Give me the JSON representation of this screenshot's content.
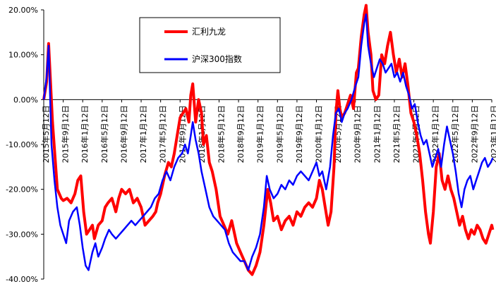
{
  "chart_data": {
    "type": "line",
    "title": "",
    "xlabel": "",
    "ylabel": "",
    "ylim": [
      -40,
      20
    ],
    "yticks": [
      "20.00%",
      "10.00%",
      "0.00%",
      "-10.00%",
      "-20.00%",
      "-30.00%",
      "-40.00%"
    ],
    "ytick_values": [
      20,
      10,
      0,
      -10,
      -20,
      -30,
      -40
    ],
    "xticks": [
      "2015年5月12日",
      "2015年9月12日",
      "2016年1月12日",
      "2016年5月12日",
      "2016年9月12日",
      "2017年1月12日",
      "2017年5月12日",
      "2017年9月12日",
      "2018年1月12日",
      "2018年5月12日",
      "2018年9月12日",
      "2019年1月12日",
      "2019年5月12日",
      "2019年9月12日",
      "2020年1月12日",
      "2020年5月12日",
      "2020年9月12日",
      "2021年1月12日",
      "2021年5月12日",
      "2021年9月12日",
      "2022年1月12日",
      "2022年5月12日",
      "2022年9月12日",
      "2023年1月12日"
    ],
    "grid": false,
    "legend_position": "top-center",
    "series": [
      {
        "name": "汇利九龙",
        "color": "#ff0000",
        "points": [
          [
            0,
            0
          ],
          [
            0.15,
            4
          ],
          [
            0.25,
            12.5
          ],
          [
            0.45,
            -5
          ],
          [
            0.7,
            -20
          ],
          [
            0.9,
            -22
          ],
          [
            1,
            -22.5
          ],
          [
            1.2,
            -22
          ],
          [
            1.4,
            -23
          ],
          [
            1.6,
            -21
          ],
          [
            1.75,
            -18
          ],
          [
            1.9,
            -17
          ],
          [
            2.05,
            -25
          ],
          [
            2.2,
            -30
          ],
          [
            2.35,
            -29
          ],
          [
            2.5,
            -28
          ],
          [
            2.6,
            -31
          ],
          [
            2.8,
            -28
          ],
          [
            3,
            -27
          ],
          [
            3.15,
            -24
          ],
          [
            3.3,
            -23
          ],
          [
            3.5,
            -22
          ],
          [
            3.7,
            -25
          ],
          [
            3.85,
            -22
          ],
          [
            4,
            -20
          ],
          [
            4.2,
            -21
          ],
          [
            4.4,
            -20
          ],
          [
            4.6,
            -23
          ],
          [
            4.8,
            -22
          ],
          [
            5,
            -24
          ],
          [
            5.2,
            -28
          ],
          [
            5.4,
            -27
          ],
          [
            5.6,
            -26
          ],
          [
            5.75,
            -25
          ],
          [
            5.85,
            -23
          ],
          [
            6,
            -21
          ],
          [
            6.2,
            -17
          ],
          [
            6.4,
            -14
          ],
          [
            6.55,
            -15
          ],
          [
            6.7,
            -12
          ],
          [
            6.85,
            -8
          ],
          [
            7,
            -4
          ],
          [
            7.15,
            -3
          ],
          [
            7.3,
            -2
          ],
          [
            7.45,
            -5
          ],
          [
            7.55,
            1
          ],
          [
            7.65,
            3.5
          ],
          [
            7.8,
            -5
          ],
          [
            7.95,
            0
          ],
          [
            8.1,
            -3
          ],
          [
            8.2,
            -10
          ],
          [
            8.35,
            -8
          ],
          [
            8.5,
            -14
          ],
          [
            8.65,
            -16
          ],
          [
            8.85,
            -20
          ],
          [
            9.05,
            -26
          ],
          [
            9.25,
            -28
          ],
          [
            9.45,
            -30
          ],
          [
            9.65,
            -27
          ],
          [
            9.9,
            -32
          ],
          [
            10.1,
            -34
          ],
          [
            10.3,
            -36
          ],
          [
            10.5,
            -38
          ],
          [
            10.7,
            -39
          ],
          [
            10.9,
            -37
          ],
          [
            11.1,
            -34
          ],
          [
            11.3,
            -28
          ],
          [
            11.5,
            -20
          ],
          [
            11.65,
            -23
          ],
          [
            11.8,
            -27
          ],
          [
            12,
            -26
          ],
          [
            12.2,
            -29
          ],
          [
            12.4,
            -27
          ],
          [
            12.6,
            -26
          ],
          [
            12.8,
            -28
          ],
          [
            13,
            -25
          ],
          [
            13.2,
            -26
          ],
          [
            13.4,
            -24
          ],
          [
            13.6,
            -23
          ],
          [
            13.8,
            -24
          ],
          [
            14,
            -22
          ],
          [
            14.15,
            -18
          ],
          [
            14.3,
            -20
          ],
          [
            14.45,
            -24
          ],
          [
            14.6,
            -28
          ],
          [
            14.75,
            -25
          ],
          [
            14.9,
            -15
          ],
          [
            15,
            -3
          ],
          [
            15.1,
            2
          ],
          [
            15.2,
            -2
          ],
          [
            15.3,
            -4
          ],
          [
            15.45,
            -3
          ],
          [
            15.6,
            -1
          ],
          [
            15.75,
            1
          ],
          [
            15.9,
            -2
          ],
          [
            16.05,
            6
          ],
          [
            16.15,
            7
          ],
          [
            16.3,
            14
          ],
          [
            16.45,
            19
          ],
          [
            16.55,
            21
          ],
          [
            16.65,
            15
          ],
          [
            16.8,
            10
          ],
          [
            16.9,
            2
          ],
          [
            17.05,
            0
          ],
          [
            17.2,
            1
          ],
          [
            17.35,
            10
          ],
          [
            17.5,
            8
          ],
          [
            17.65,
            12
          ],
          [
            17.8,
            15
          ],
          [
            17.95,
            10
          ],
          [
            18.1,
            6
          ],
          [
            18.25,
            9
          ],
          [
            18.4,
            5
          ],
          [
            18.55,
            8
          ],
          [
            18.7,
            3
          ],
          [
            18.85,
            -3
          ],
          [
            19,
            -5
          ],
          [
            19.15,
            -8
          ],
          [
            19.3,
            -12
          ],
          [
            19.45,
            -18
          ],
          [
            19.6,
            -25
          ],
          [
            19.75,
            -30
          ],
          [
            19.85,
            -32
          ],
          [
            20,
            -25
          ],
          [
            20.15,
            -15
          ],
          [
            20.3,
            -12
          ],
          [
            20.45,
            -18
          ],
          [
            20.6,
            -20
          ],
          [
            20.75,
            -17
          ],
          [
            20.9,
            -20
          ],
          [
            21.05,
            -22
          ],
          [
            21.2,
            -25
          ],
          [
            21.35,
            -28
          ],
          [
            21.5,
            -26
          ],
          [
            21.65,
            -29
          ],
          [
            21.8,
            -31
          ],
          [
            21.95,
            -29
          ],
          [
            22.1,
            -30
          ],
          [
            22.25,
            -28
          ],
          [
            22.4,
            -29
          ],
          [
            22.55,
            -31
          ],
          [
            22.7,
            -32
          ],
          [
            22.85,
            -30
          ],
          [
            23,
            -28
          ],
          [
            23.05,
            -29
          ]
        ]
      },
      {
        "name": "沪深300指数",
        "color": "#0000ff",
        "points": [
          [
            0,
            0
          ],
          [
            0.15,
            5
          ],
          [
            0.25,
            12
          ],
          [
            0.4,
            -10
          ],
          [
            0.55,
            -18
          ],
          [
            0.7,
            -24
          ],
          [
            0.85,
            -28
          ],
          [
            1,
            -30
          ],
          [
            1.15,
            -32
          ],
          [
            1.3,
            -27
          ],
          [
            1.5,
            -25
          ],
          [
            1.7,
            -24
          ],
          [
            1.85,
            -28
          ],
          [
            2,
            -33
          ],
          [
            2.15,
            -37
          ],
          [
            2.3,
            -38
          ],
          [
            2.5,
            -34
          ],
          [
            2.65,
            -32
          ],
          [
            2.8,
            -35
          ],
          [
            3,
            -33
          ],
          [
            3.15,
            -31
          ],
          [
            3.35,
            -29
          ],
          [
            3.5,
            -30
          ],
          [
            3.7,
            -31
          ],
          [
            3.9,
            -30
          ],
          [
            4.1,
            -29
          ],
          [
            4.3,
            -28
          ],
          [
            4.5,
            -27
          ],
          [
            4.7,
            -28
          ],
          [
            4.9,
            -27
          ],
          [
            5.1,
            -26
          ],
          [
            5.3,
            -25
          ],
          [
            5.5,
            -24
          ],
          [
            5.7,
            -22
          ],
          [
            5.9,
            -21
          ],
          [
            6.1,
            -18
          ],
          [
            6.3,
            -16
          ],
          [
            6.5,
            -18
          ],
          [
            6.7,
            -15
          ],
          [
            6.9,
            -13
          ],
          [
            7.1,
            -12
          ],
          [
            7.25,
            -10
          ],
          [
            7.4,
            -12
          ],
          [
            7.55,
            -8
          ],
          [
            7.65,
            -5
          ],
          [
            7.8,
            -9
          ],
          [
            7.95,
            -12
          ],
          [
            8.1,
            -16
          ],
          [
            8.3,
            -20
          ],
          [
            8.5,
            -24
          ],
          [
            8.7,
            -26
          ],
          [
            8.9,
            -27
          ],
          [
            9.1,
            -28
          ],
          [
            9.3,
            -29
          ],
          [
            9.5,
            -32
          ],
          [
            9.7,
            -34
          ],
          [
            9.9,
            -35
          ],
          [
            10.1,
            -36
          ],
          [
            10.3,
            -36
          ],
          [
            10.5,
            -38
          ],
          [
            10.7,
            -35
          ],
          [
            10.9,
            -33
          ],
          [
            11.1,
            -30
          ],
          [
            11.3,
            -24
          ],
          [
            11.45,
            -17
          ],
          [
            11.6,
            -20
          ],
          [
            11.8,
            -22
          ],
          [
            12,
            -21
          ],
          [
            12.2,
            -19
          ],
          [
            12.4,
            -20
          ],
          [
            12.6,
            -18
          ],
          [
            12.8,
            -19
          ],
          [
            13,
            -17
          ],
          [
            13.2,
            -16
          ],
          [
            13.4,
            -17
          ],
          [
            13.6,
            -18
          ],
          [
            13.8,
            -16
          ],
          [
            14,
            -14
          ],
          [
            14.15,
            -17
          ],
          [
            14.3,
            -16
          ],
          [
            14.5,
            -20
          ],
          [
            14.7,
            -15
          ],
          [
            14.85,
            -8
          ],
          [
            15,
            -3
          ],
          [
            15.15,
            -2
          ],
          [
            15.3,
            -5
          ],
          [
            15.45,
            -3
          ],
          [
            15.6,
            -2
          ],
          [
            15.8,
            0
          ],
          [
            16,
            3
          ],
          [
            16.15,
            5
          ],
          [
            16.3,
            12
          ],
          [
            16.45,
            17
          ],
          [
            16.55,
            19
          ],
          [
            16.65,
            12
          ],
          [
            16.8,
            8
          ],
          [
            16.95,
            5
          ],
          [
            17.1,
            7
          ],
          [
            17.25,
            9
          ],
          [
            17.4,
            8
          ],
          [
            17.55,
            6
          ],
          [
            17.7,
            7
          ],
          [
            17.85,
            8
          ],
          [
            18,
            5
          ],
          [
            18.15,
            6
          ],
          [
            18.3,
            4
          ],
          [
            18.45,
            6
          ],
          [
            18.6,
            3
          ],
          [
            18.75,
            1
          ],
          [
            18.9,
            -2
          ],
          [
            19.05,
            -1
          ],
          [
            19.2,
            -5
          ],
          [
            19.35,
            -8
          ],
          [
            19.5,
            -10
          ],
          [
            19.65,
            -9
          ],
          [
            19.8,
            -12
          ],
          [
            19.95,
            -15
          ],
          [
            20.1,
            -13
          ],
          [
            20.25,
            -11
          ],
          [
            20.4,
            -15
          ],
          [
            20.55,
            -10
          ],
          [
            20.7,
            -6
          ],
          [
            20.85,
            -9
          ],
          [
            21,
            -12
          ],
          [
            21.15,
            -16
          ],
          [
            21.3,
            -21
          ],
          [
            21.45,
            -24
          ],
          [
            21.6,
            -20
          ],
          [
            21.75,
            -18
          ],
          [
            21.9,
            -17
          ],
          [
            22.05,
            -20
          ],
          [
            22.2,
            -18
          ],
          [
            22.35,
            -16
          ],
          [
            22.5,
            -14
          ],
          [
            22.65,
            -13
          ],
          [
            22.8,
            -15
          ],
          [
            22.95,
            -14
          ],
          [
            23.05,
            -13
          ]
        ]
      }
    ]
  }
}
